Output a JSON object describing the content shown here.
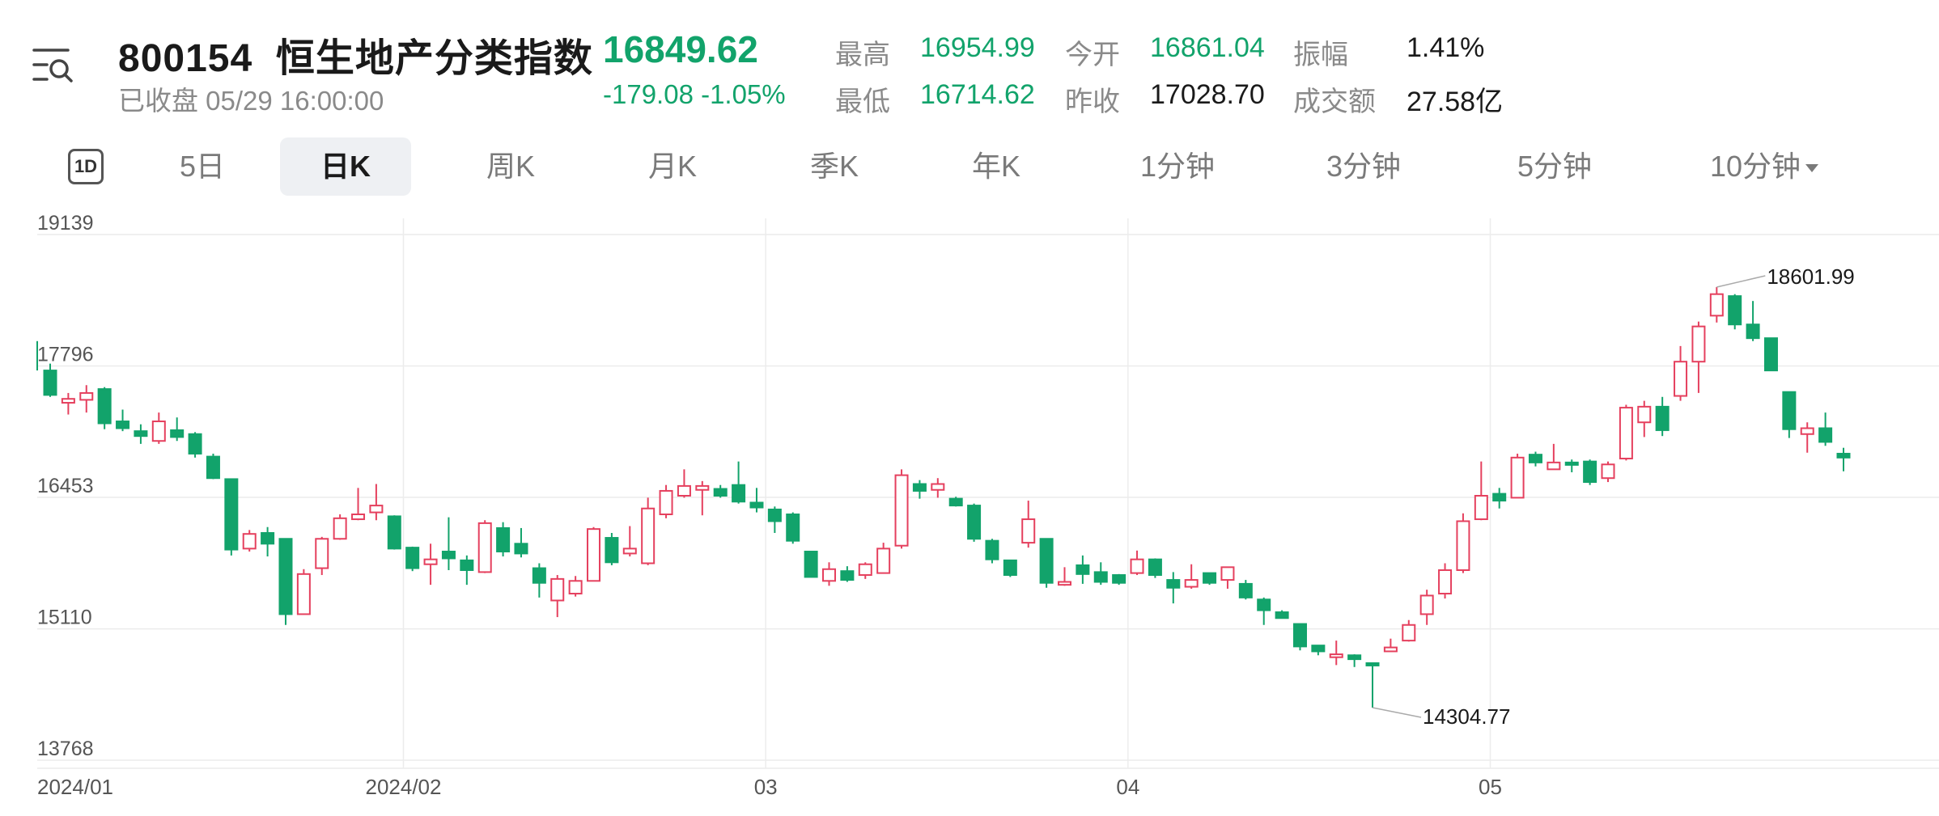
{
  "header": {
    "code": "800154",
    "name": "恒生地产分类指数",
    "status": "已收盘 05/29 16:00:00",
    "last_price": "16849.62",
    "change": "-179.08 -1.05%",
    "stats": [
      {
        "label": "最高",
        "value": "16954.99",
        "color": "#12a36b"
      },
      {
        "label": "今开",
        "value": "16861.04",
        "color": "#12a36b"
      },
      {
        "label": "振幅",
        "value": "1.41%",
        "color": "#1a1a1a"
      },
      {
        "label": "最低",
        "value": "16714.62",
        "color": "#12a36b"
      },
      {
        "label": "昨收",
        "value": "17028.70",
        "color": "#1a1a1a"
      },
      {
        "label": "成交额",
        "value": "27.58亿",
        "color": "#1a1a1a"
      }
    ]
  },
  "tabs": {
    "one_day_icon": "1D",
    "items": [
      "5日",
      "日K",
      "周K",
      "月K",
      "季K",
      "年K",
      "1分钟",
      "3分钟",
      "5分钟",
      "10分钟"
    ],
    "active": "日K"
  },
  "colors": {
    "up": "#e5405e",
    "down": "#12a36b",
    "accent": "#12a36b"
  },
  "chart_data": {
    "type": "candlestick",
    "y_ticks": [
      "19139",
      "17796",
      "16453",
      "15110",
      "13768"
    ],
    "ylim": [
      13768,
      19139
    ],
    "x_labels": [
      "2024/01",
      "2024/02",
      "03",
      "04",
      "05"
    ],
    "grid": true,
    "annotations": [
      {
        "text": "18601.99",
        "type": "high"
      },
      {
        "text": "14304.77",
        "type": "low"
      }
    ],
    "candles": [
      [
        17750,
        17500,
        17820,
        17480
      ],
      [
        17420,
        17460,
        17520,
        17300
      ],
      [
        17450,
        17520,
        17600,
        17320
      ],
      [
        17560,
        17210,
        17580,
        17150
      ],
      [
        17230,
        17160,
        17350,
        17130
      ],
      [
        17130,
        17080,
        17200,
        17000
      ],
      [
        17030,
        17230,
        17320,
        17000
      ],
      [
        17140,
        17070,
        17270,
        17030
      ],
      [
        17100,
        16900,
        17120,
        16860
      ],
      [
        16870,
        16650,
        16900,
        16640
      ],
      [
        16640,
        15920,
        16640,
        15860
      ],
      [
        15930,
        16080,
        16120,
        15900
      ],
      [
        16090,
        15980,
        16150,
        15850
      ],
      [
        16030,
        15260,
        16030,
        15150
      ],
      [
        15260,
        15670,
        15720,
        15260
      ],
      [
        15730,
        16030,
        16050,
        15660
      ],
      [
        16030,
        16240,
        16280,
        16020
      ],
      [
        16230,
        16280,
        16550,
        16220
      ],
      [
        16300,
        16370,
        16590,
        16220
      ],
      [
        16260,
        15930,
        16270,
        15920
      ],
      [
        15940,
        15730,
        15950,
        15700
      ],
      [
        15770,
        15820,
        15980,
        15560
      ],
      [
        15900,
        15830,
        16250,
        15710
      ],
      [
        15810,
        15710,
        15860,
        15560
      ],
      [
        15690,
        16190,
        16220,
        15680
      ],
      [
        16140,
        15900,
        16200,
        15850
      ],
      [
        15980,
        15880,
        16140,
        15840
      ],
      [
        15730,
        15580,
        15780,
        15430
      ],
      [
        15400,
        15620,
        15660,
        15230
      ],
      [
        15470,
        15600,
        15650,
        15440
      ],
      [
        15600,
        16130,
        16150,
        15600
      ],
      [
        16040,
        15790,
        16090,
        15760
      ],
      [
        15880,
        15930,
        16160,
        15850
      ],
      [
        15780,
        16340,
        16450,
        15760
      ],
      [
        16280,
        16520,
        16580,
        16240
      ],
      [
        16470,
        16570,
        16740,
        16450
      ],
      [
        16530,
        16570,
        16620,
        16270
      ],
      [
        16540,
        16470,
        16580,
        16450
      ],
      [
        16580,
        16410,
        16820,
        16390
      ],
      [
        16400,
        16350,
        16550,
        16300
      ],
      [
        16330,
        16210,
        16360,
        16090
      ],
      [
        16280,
        16010,
        16300,
        15980
      ],
      [
        15900,
        15640,
        15900,
        15640
      ],
      [
        15600,
        15720,
        15790,
        15550
      ],
      [
        15700,
        15610,
        15750,
        15590
      ],
      [
        15660,
        15770,
        15790,
        15620
      ],
      [
        15680,
        15930,
        15990,
        15680
      ],
      [
        15960,
        16680,
        16740,
        15930
      ],
      [
        16590,
        16520,
        16630,
        16440
      ],
      [
        16530,
        16590,
        16650,
        16450
      ],
      [
        16440,
        16370,
        16460,
        16360
      ],
      [
        16370,
        16030,
        16390,
        16000
      ],
      [
        16010,
        15820,
        16030,
        15780
      ],
      [
        15810,
        15660,
        15810,
        15640
      ],
      [
        15990,
        16230,
        16420,
        15940
      ],
      [
        16030,
        15580,
        16030,
        15530
      ],
      [
        15560,
        15590,
        15740,
        15550
      ],
      [
        15760,
        15670,
        15860,
        15570
      ],
      [
        15690,
        15590,
        15790,
        15560
      ],
      [
        15660,
        15580,
        15670,
        15560
      ],
      [
        15680,
        15820,
        15910,
        15660
      ],
      [
        15820,
        15660,
        15830,
        15630
      ],
      [
        15610,
        15530,
        15690,
        15370
      ],
      [
        15540,
        15610,
        15770,
        15520
      ],
      [
        15680,
        15580,
        15680,
        15560
      ],
      [
        15610,
        15740,
        15720,
        15520
      ],
      [
        15570,
        15430,
        15610,
        15410
      ],
      [
        15410,
        15300,
        15430,
        15150
      ],
      [
        15280,
        15220,
        15300,
        15220
      ],
      [
        15160,
        14930,
        15160,
        14890
      ],
      [
        14940,
        14880,
        14940,
        14840
      ],
      [
        14820,
        14850,
        14990,
        14740
      ],
      [
        14840,
        14800,
        14850,
        14720
      ],
      [
        14760,
        14740,
        14760,
        14304.77
      ],
      [
        14880,
        14920,
        15010,
        14890
      ],
      [
        14990,
        15150,
        15200,
        14980
      ],
      [
        15260,
        15450,
        15510,
        15150
      ],
      [
        15470,
        15710,
        15780,
        15420
      ],
      [
        15710,
        16210,
        16290,
        15680
      ],
      [
        16230,
        16470,
        16820,
        16220
      ],
      [
        16490,
        16420,
        16550,
        16340
      ],
      [
        16450,
        16860,
        16900,
        16450
      ],
      [
        16890,
        16810,
        16920,
        16770
      ],
      [
        16740,
        16810,
        17000,
        16790
      ],
      [
        16810,
        16790,
        16840,
        16710
      ],
      [
        16820,
        16610,
        16840,
        16580
      ],
      [
        16650,
        16790,
        16820,
        16610
      ],
      [
        16850,
        17370,
        17400,
        16830
      ],
      [
        17220,
        17380,
        17440,
        17070
      ],
      [
        17380,
        17140,
        17480,
        17080
      ],
      [
        17490,
        17840,
        18000,
        17440
      ],
      [
        17840,
        18200,
        18250,
        17520
      ],
      [
        18310,
        18530,
        18601.99,
        18240
      ],
      [
        18510,
        18220,
        18530,
        18170
      ],
      [
        18220,
        18080,
        18460,
        18050
      ],
      [
        18080,
        17750,
        18080,
        17750
      ],
      [
        17530,
        17150,
        17530,
        17060
      ],
      [
        17100,
        17160,
        17220,
        16910
      ],
      [
        17160,
        17020,
        17320,
        16980
      ],
      [
        16900,
        16860,
        16960,
        16720
      ]
    ]
  }
}
